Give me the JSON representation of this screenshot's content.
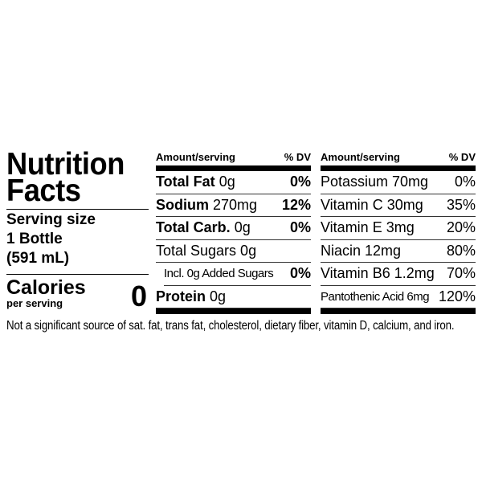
{
  "title_line1": "Nutrition",
  "title_line2": "Facts",
  "serving": {
    "label": "Serving size",
    "amount": "1 Bottle",
    "volume": "(591 mL)"
  },
  "calories": {
    "label": "Calories",
    "sub": "per serving",
    "value": "0"
  },
  "middle": {
    "header_amount": "Amount/serving",
    "header_dv": "% DV",
    "rows": [
      {
        "name": "Total Fat",
        "amount": "0g",
        "dv": "0%"
      },
      {
        "name": "Sodium",
        "amount": "270mg",
        "dv": "12%"
      },
      {
        "name": "Total Carb.",
        "amount": "0g",
        "dv": "0%"
      },
      {
        "name": "Total Sugars 0g",
        "amount": "",
        "dv": ""
      },
      {
        "name": "Incl. 0g Added Sugars",
        "amount": "",
        "dv": "0%"
      },
      {
        "name": "Protein",
        "amount": "0g",
        "dv": ""
      }
    ]
  },
  "right": {
    "header_amount": "Amount/serving",
    "header_dv": "% DV",
    "rows": [
      {
        "name": "Potassium 70mg",
        "dv": "0%"
      },
      {
        "name": "Vitamin C 30mg",
        "dv": "35%"
      },
      {
        "name": "Vitamin E 3mg",
        "dv": "20%"
      },
      {
        "name": "Niacin 12mg",
        "dv": "80%"
      },
      {
        "name": "Vitamin B6 1.2mg",
        "dv": "70%"
      },
      {
        "name": "Pantothenic Acid 6mg",
        "dv": "120%"
      }
    ]
  },
  "footnote": "Not a significant source of sat. fat, trans fat, cholesterol, dietary fiber, vitamin D, calcium, and iron."
}
